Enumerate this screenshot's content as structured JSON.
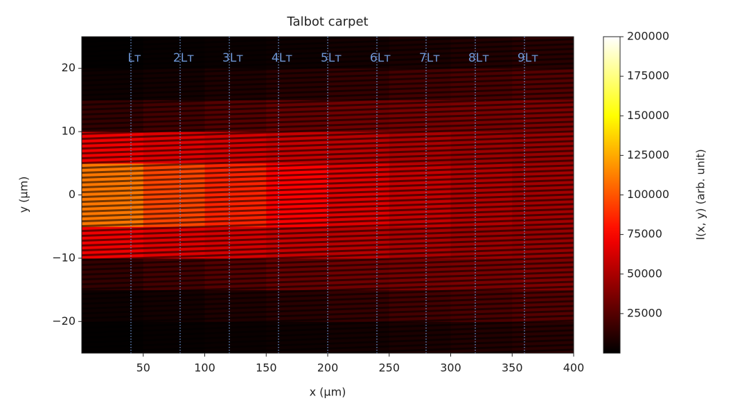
{
  "chart_data": {
    "type": "heatmap",
    "title": "Talbot carpet",
    "x_label": "x (μm)",
    "y_label": "y (μm)",
    "colorbar_label": "I(x, y) (arb. unit)",
    "colormap": "hot",
    "xlim": [
      0,
      400
    ],
    "xticks": [
      50,
      100,
      150,
      200,
      250,
      300,
      350,
      400
    ],
    "ylim": [
      -25,
      25
    ],
    "yticks": [
      {
        "value": -20,
        "label": "−20"
      },
      {
        "value": -10,
        "label": "−10"
      },
      0,
      10,
      20
    ],
    "clim": [
      0,
      200000
    ],
    "cticks": [
      25000,
      50000,
      75000,
      100000,
      125000,
      150000,
      175000,
      200000
    ],
    "x_bins": [
      0,
      50,
      100,
      150,
      200,
      250,
      300,
      350,
      400
    ],
    "y_bins": [
      -25,
      -20,
      -15,
      -10,
      -5,
      0,
      5,
      10,
      15,
      20,
      25
    ],
    "z": [
      [
        1000,
        2000,
        3000,
        4000,
        6000,
        8000,
        10000,
        12000
      ],
      [
        4000,
        6000,
        9000,
        12000,
        16000,
        20000,
        22000,
        25000
      ],
      [
        15000,
        20000,
        25000,
        30000,
        33000,
        35000,
        36000,
        37000
      ],
      [
        70000,
        65000,
        62000,
        58000,
        54000,
        50000,
        46000,
        44000
      ],
      [
        110000,
        95000,
        85000,
        75000,
        65000,
        58000,
        52000,
        48000
      ],
      [
        110000,
        95000,
        85000,
        75000,
        65000,
        58000,
        52000,
        48000
      ],
      [
        70000,
        65000,
        62000,
        58000,
        54000,
        50000,
        46000,
        44000
      ],
      [
        15000,
        20000,
        25000,
        30000,
        33000,
        35000,
        36000,
        37000
      ],
      [
        4000,
        6000,
        9000,
        12000,
        16000,
        20000,
        22000,
        25000
      ],
      [
        1000,
        2000,
        3000,
        4000,
        6000,
        8000,
        10000,
        12000
      ]
    ],
    "annotation_color": "#6f98d8",
    "annotations": [
      {
        "x": 40,
        "label": "Lᴛ"
      },
      {
        "x": 80,
        "label": "2Lᴛ"
      },
      {
        "x": 120,
        "label": "3Lᴛ"
      },
      {
        "x": 160,
        "label": "4Lᴛ"
      },
      {
        "x": 200,
        "label": "5Lᴛ"
      },
      {
        "x": 240,
        "label": "6Lᴛ"
      },
      {
        "x": 280,
        "label": "7Lᴛ"
      },
      {
        "x": 320,
        "label": "8Lᴛ"
      },
      {
        "x": 360,
        "label": "9Lᴛ"
      }
    ]
  }
}
